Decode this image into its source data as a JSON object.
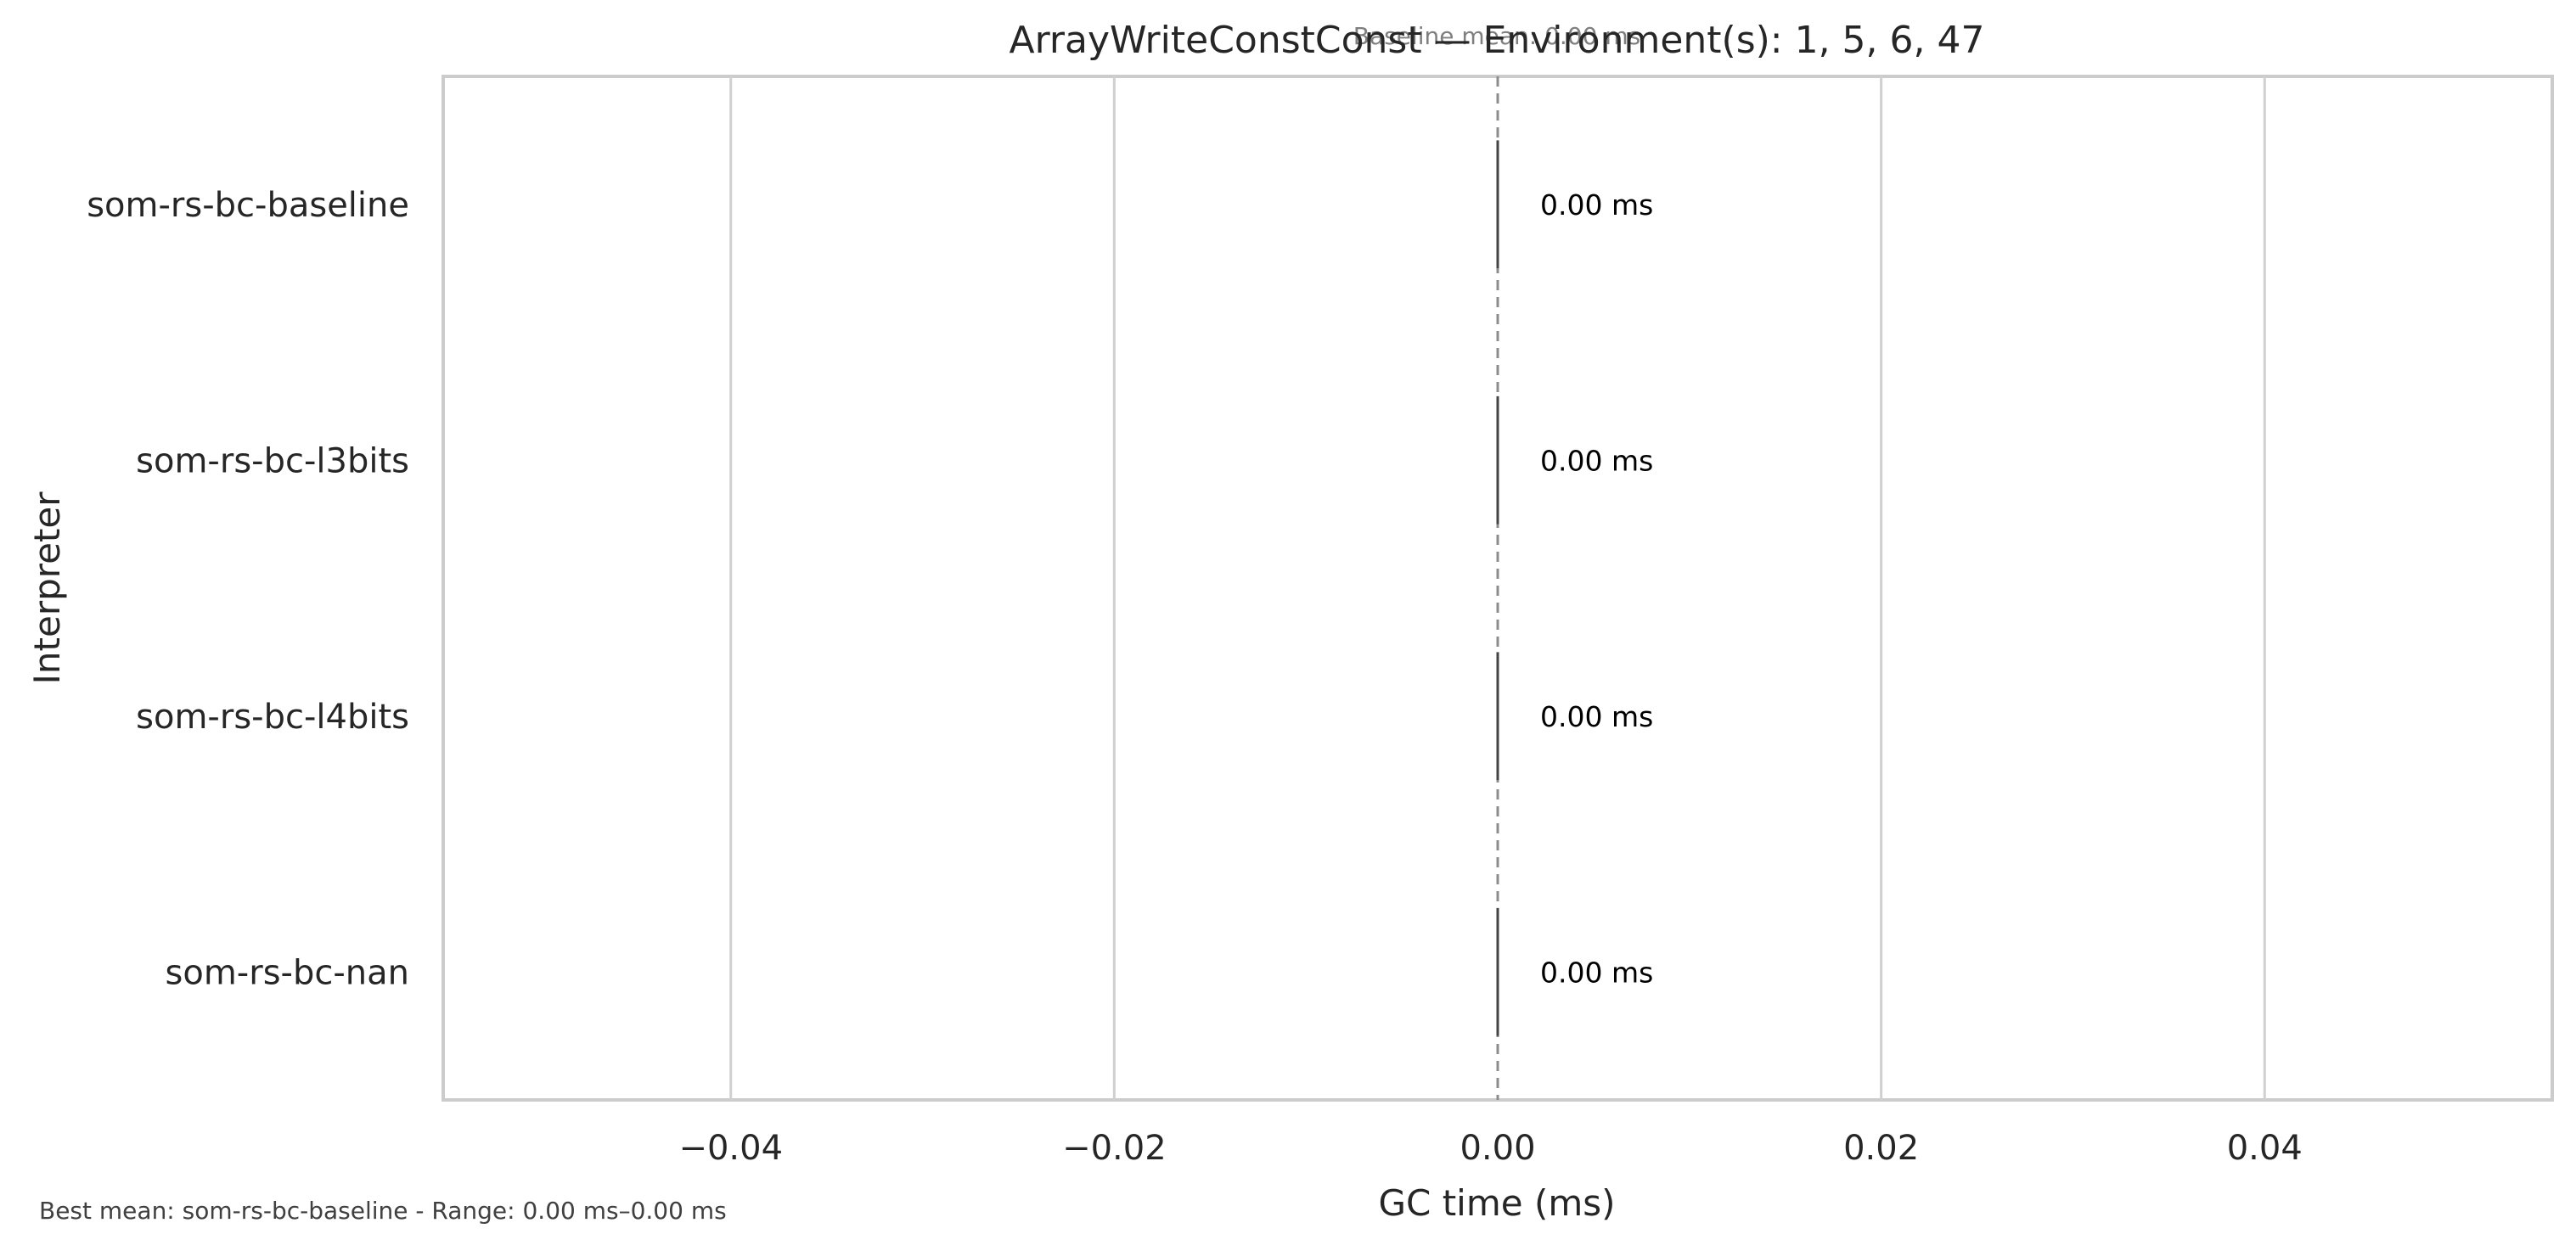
{
  "chart_data": {
    "type": "bar",
    "orientation": "horizontal",
    "title": "ArrayWriteConstConst — Environment(s): 1, 5, 6, 47",
    "subtitle": "Baseline mean: 0.00 ms",
    "xlabel": "GC time (ms)",
    "ylabel": "Interpreter",
    "categories": [
      "som-rs-bc-baseline",
      "som-rs-bc-l3bits",
      "som-rs-bc-l4bits",
      "som-rs-bc-nan"
    ],
    "values": [
      0.0,
      0.0,
      0.0,
      0.0
    ],
    "value_labels": [
      "0.00 ms",
      "0.00 ms",
      "0.00 ms",
      "0.00 ms"
    ],
    "errors": [
      0.0,
      0.0,
      0.0,
      0.0
    ],
    "xlim": [
      -0.055,
      0.055
    ],
    "xticks": [
      -0.04,
      -0.02,
      0.0,
      0.02,
      0.04
    ],
    "xtick_labels": [
      "−0.04",
      "−0.02",
      "0.00",
      "0.02",
      "0.04"
    ],
    "baseline": 0.0,
    "grid": "vertical",
    "footnote": "Best mean: som-rs-bc-baseline - Range: 0.00 ms–0.00 ms",
    "colors": {
      "grid": "#d0d0d0",
      "frame": "#cccccc",
      "baseline": "#8c8c8c",
      "errorbar": "#444444",
      "text": "#262626"
    }
  }
}
